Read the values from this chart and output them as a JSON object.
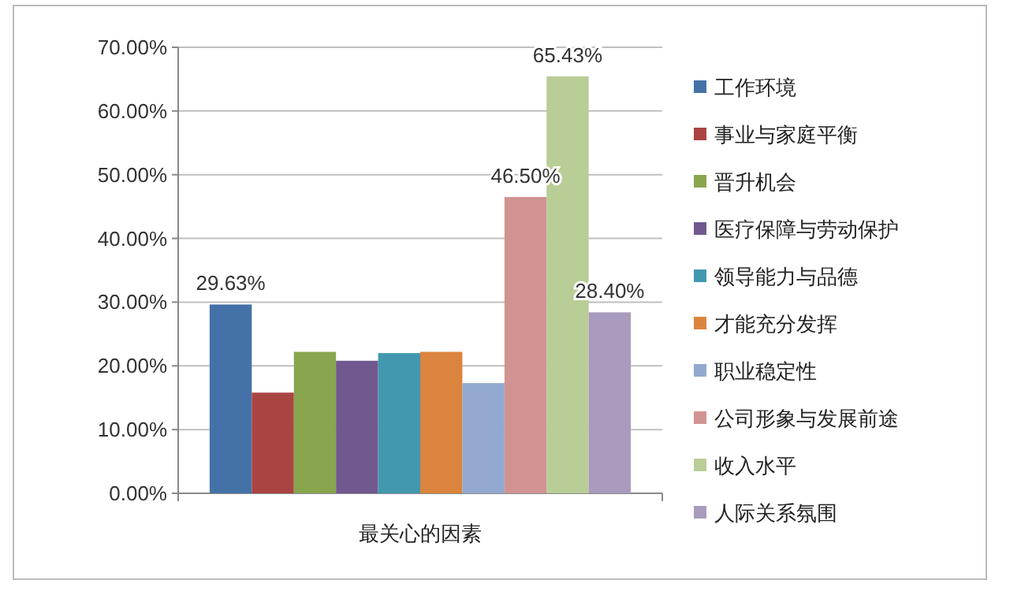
{
  "chart_data": {
    "type": "bar",
    "categories": [
      "最关心的因素"
    ],
    "ylim": [
      0,
      70
    ],
    "yticks": [
      {
        "value": 0,
        "label": "0.00%"
      },
      {
        "value": 10,
        "label": "10.00%"
      },
      {
        "value": 20,
        "label": "20.00%"
      },
      {
        "value": 30,
        "label": "30.00%"
      },
      {
        "value": 40,
        "label": "40.00%"
      },
      {
        "value": 50,
        "label": "50.00%"
      },
      {
        "value": 60,
        "label": "60.00%"
      },
      {
        "value": 70,
        "label": "70.00%"
      }
    ],
    "grid": "y",
    "legend": "right",
    "series": [
      {
        "name": "工作环境",
        "color": "#4472a8",
        "values": [
          29.63
        ],
        "value_labels": [
          "29.63%"
        ]
      },
      {
        "name": "事业与家庭平衡",
        "color": "#aa4442",
        "values": [
          15.8
        ],
        "value_labels": [
          null
        ]
      },
      {
        "name": "晋升机会",
        "color": "#89a54e",
        "values": [
          22.2
        ],
        "value_labels": [
          null
        ]
      },
      {
        "name": "医疗保障与劳动保护",
        "color": "#71588f",
        "values": [
          20.8
        ],
        "value_labels": [
          null
        ]
      },
      {
        "name": "领导能力与品德",
        "color": "#4198af",
        "values": [
          22.0
        ],
        "value_labels": [
          null
        ]
      },
      {
        "name": "才能充分发挥",
        "color": "#db843d",
        "values": [
          22.2
        ],
        "value_labels": [
          null
        ]
      },
      {
        "name": "职业稳定性",
        "color": "#93a9cf",
        "values": [
          17.3
        ],
        "value_labels": [
          null
        ]
      },
      {
        "name": "公司形象与发展前途",
        "color": "#d19392",
        "values": [
          46.5
        ],
        "value_labels": [
          "46.50%"
        ]
      },
      {
        "name": "收入水平",
        "color": "#b9cd96",
        "values": [
          65.43
        ],
        "value_labels": [
          "65.43%"
        ]
      },
      {
        "name": "人际关系氛围",
        "color": "#a99bbd",
        "values": [
          28.4
        ],
        "value_labels": [
          "28.40%"
        ]
      }
    ]
  }
}
